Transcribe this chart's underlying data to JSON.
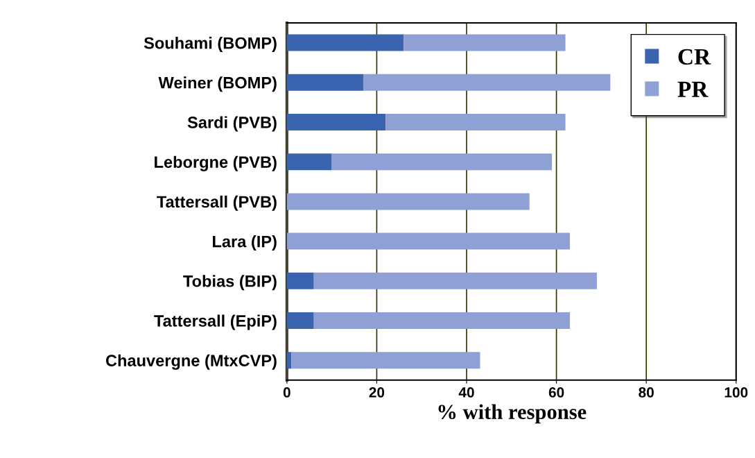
{
  "chart_data": {
    "type": "bar",
    "orientation": "horizontal",
    "stacked": true,
    "xlabel": "% with response",
    "categories": [
      "Souhami (BOMP)",
      "Weiner (BOMP)",
      "Sardi (PVB)",
      "Leborgne (PVB)",
      "Tattersall (PVB)",
      "Lara (IP)",
      "Tobias (BIP)",
      "Tattersall (EpiP)",
      "Chauvergne (MtxCVP)"
    ],
    "series": [
      {
        "name": "CR",
        "color": "#3a63b0",
        "values": [
          26,
          17,
          22,
          10,
          0,
          0,
          6,
          6,
          1
        ]
      },
      {
        "name": "PR",
        "color": "#8ea0d4",
        "values": [
          36,
          55,
          40,
          49,
          54,
          63,
          63,
          57,
          42
        ]
      }
    ],
    "xlim": [
      0,
      100
    ],
    "xticks": [
      0,
      20,
      40,
      60,
      80,
      100
    ],
    "grid": "x",
    "legend": "top right"
  }
}
